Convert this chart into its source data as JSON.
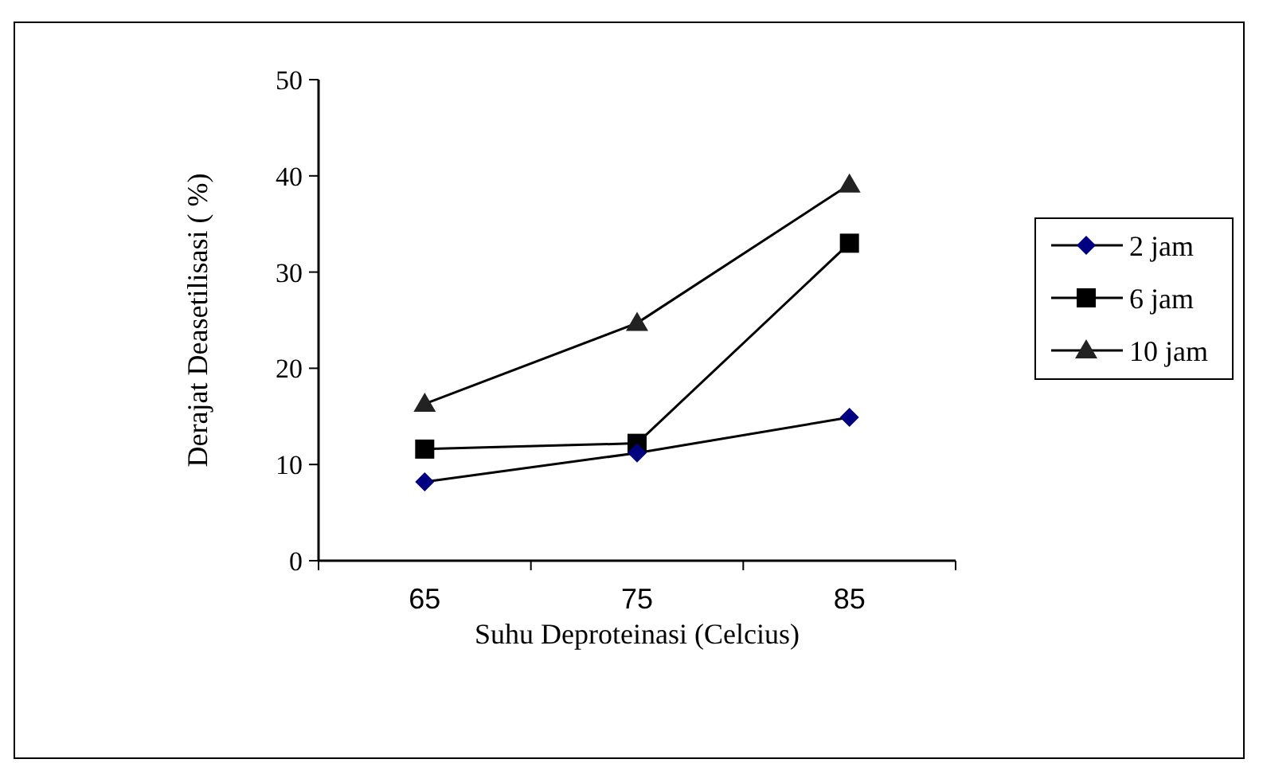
{
  "chart_data": {
    "type": "line",
    "xlabel": "Suhu Deproteinasi (Celcius)",
    "ylabel": "Derajat Deasetilisasi ( %)",
    "categories": [
      "65",
      "75",
      "85"
    ],
    "ylim": [
      0,
      50
    ],
    "yticks": [
      0,
      10,
      20,
      30,
      40,
      50
    ],
    "grid": false,
    "legend": "right",
    "line_style": "solid",
    "series": [
      {
        "name": "2 jam",
        "color": "#000080",
        "marker": "diamond",
        "values": [
          8.2,
          11.2,
          14.9
        ]
      },
      {
        "name": "6 jam",
        "color": "#000000",
        "marker": "square",
        "values": [
          11.6,
          12.2,
          33.0
        ]
      },
      {
        "name": "10 jam",
        "color": "#222222",
        "marker": "triangle",
        "values": [
          16.3,
          24.7,
          39.1
        ]
      }
    ]
  }
}
